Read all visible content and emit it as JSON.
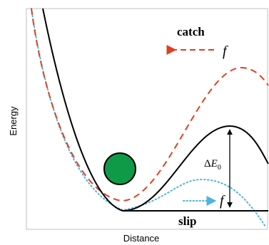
{
  "axes": {
    "x_label": "Distance",
    "y_label": "Energy"
  },
  "annotations": {
    "catch": "catch",
    "slip": "slip",
    "force_top": "f",
    "force_slip": "f",
    "barrier_delta": "Δ",
    "barrier_e": "E",
    "barrier_sub": "0"
  },
  "curves": [
    {
      "id": "unloaded",
      "style": "solid",
      "color": "#000000"
    },
    {
      "id": "catch",
      "style": "dashed",
      "color": "#e0401f"
    },
    {
      "id": "slip",
      "style": "dotted",
      "color": "#4fb3dd"
    }
  ],
  "particle": {
    "color": "#0f9a48"
  }
}
